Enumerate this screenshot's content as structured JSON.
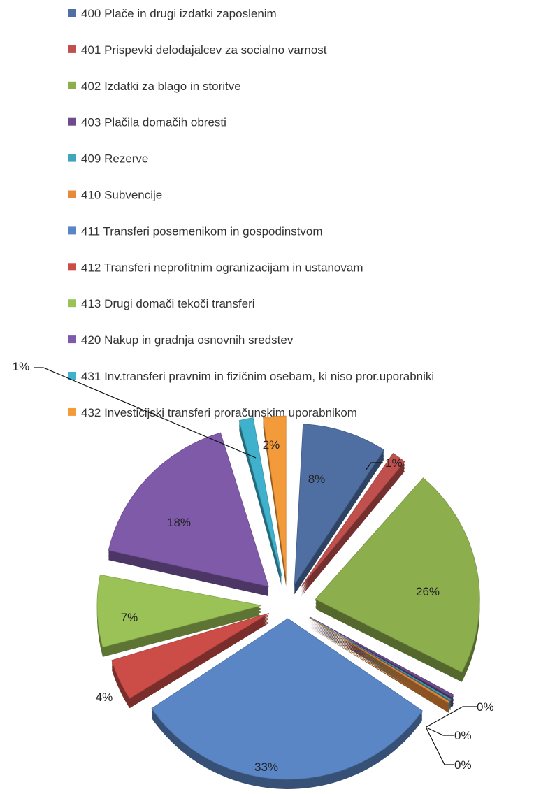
{
  "chart_data": {
    "type": "pie",
    "exploded": true,
    "three_d": true,
    "legend_position": "top",
    "series": [
      {
        "name": "Data",
        "slices": [
          {
            "label": "400 Plače in drugi izdatki zaposlenim",
            "value": 8,
            "display": "8%",
            "color": "#4F6FA3"
          },
          {
            "label": "401 Prispevki delodajalcev za socialno varnost",
            "value": 1,
            "display": "1%",
            "color": "#C0504D"
          },
          {
            "label": "402 Izdatki za blago in storitve",
            "value": 26,
            "display": "26%",
            "color": "#8CAE4D"
          },
          {
            "label": "403 Plačila domačih obresti",
            "value": 0,
            "display": "0%",
            "color": "#6E4B8A"
          },
          {
            "label": "409 Rezerve",
            "value": 0,
            "display": "0%",
            "color": "#3FA6BC"
          },
          {
            "label": "410 Subvencije",
            "value": 0,
            "display": "0%",
            "color": "#E88A3A"
          },
          {
            "label": "411 Transferi posemenikom in gospodinstvom",
            "value": 33,
            "display": "33%",
            "color": "#5A86C5"
          },
          {
            "label": "412 Transferi neprofitnim ogranizacijam in ustanovam",
            "value": 4,
            "display": "4%",
            "color": "#CC4C48"
          },
          {
            "label": "413 Drugi domači tekoči transferi",
            "value": 7,
            "display": "7%",
            "color": "#9BC256"
          },
          {
            "label": "420 Nakup in gradnja osnovnih sredstev",
            "value": 18,
            "display": "18%",
            "color": "#7F5AA8"
          },
          {
            "label": "431 Inv.transferi pravnim in fizičnim osebam, ki niso pror.uporabniki",
            "value": 1,
            "display": "1%",
            "color": "#3FB1CC"
          },
          {
            "label": "432 Investicijski transferi proračunskim uporabnikom",
            "value": 2,
            "display": "2%",
            "color": "#F39A3A"
          }
        ]
      }
    ]
  }
}
